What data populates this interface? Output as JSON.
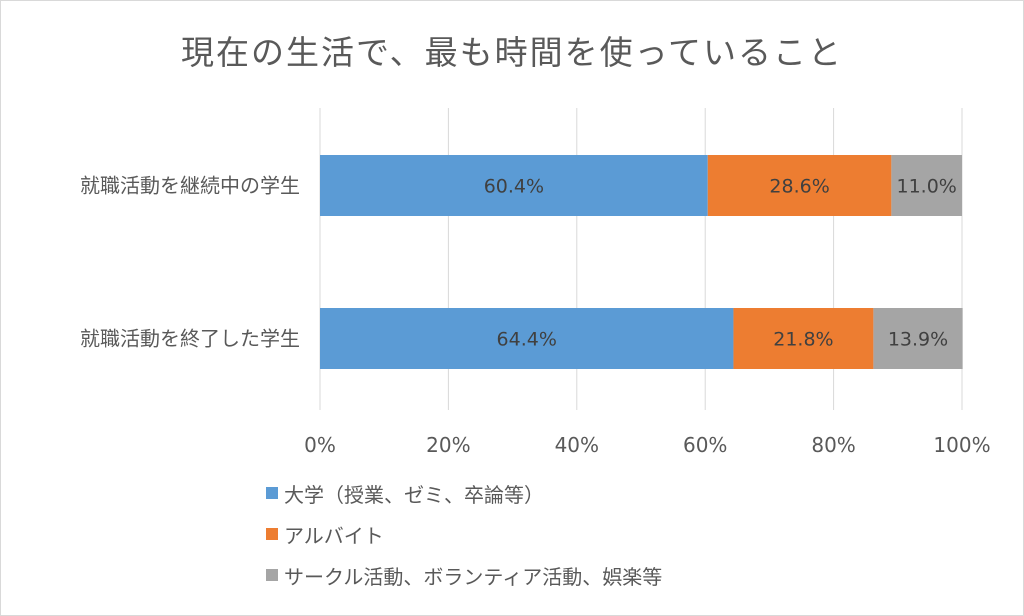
{
  "chart_data": {
    "type": "bar",
    "orientation": "horizontal",
    "stacked": "percent",
    "title": "現在の生活で、最も時間を使っていること",
    "categories": [
      "就職活動を継続中の学生",
      "就職活動を終了した学生"
    ],
    "series": [
      {
        "name": "大学（授業、ゼミ、卒論等）",
        "color": "#5B9BD5",
        "values": [
          60.4,
          64.4
        ],
        "labels": [
          "60.4%",
          "64.4%"
        ]
      },
      {
        "name": "アルバイト",
        "color": "#ED7D31",
        "values": [
          28.6,
          21.8
        ],
        "labels": [
          "28.6%",
          "21.8%"
        ]
      },
      {
        "name": "サークル活動、ボランティア活動、娯楽等",
        "color": "#A5A5A5",
        "values": [
          11.0,
          13.9
        ],
        "labels": [
          "11.0%",
          "13.9%"
        ]
      }
    ],
    "xlim": [
      0,
      100
    ],
    "xticks": [
      "0%",
      "20%",
      "40%",
      "60%",
      "80%",
      "100%"
    ],
    "grid": true,
    "legend_position": "bottom"
  }
}
